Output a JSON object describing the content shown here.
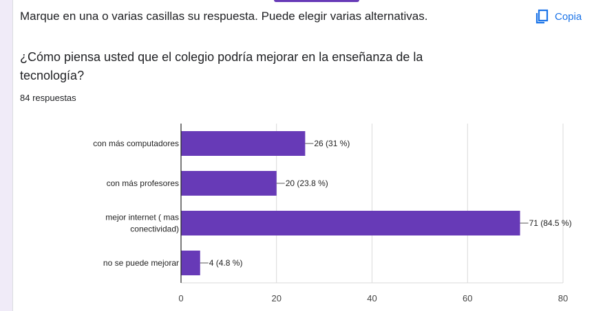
{
  "instruction": "Marque en una o varias casillas su respuesta. Puede elegir varias alternativas.",
  "copy_label": "Copiar",
  "question": "¿Cómo piensa usted que el colegio podría mejorar en la enseñanza de la tecnología?",
  "responses": "84 respuestas",
  "colors": {
    "bar": "#673ab7",
    "accent": "#1a73e8"
  },
  "icons": {
    "copy": "copy-icon"
  },
  "chart_data": {
    "type": "bar",
    "orientation": "horizontal",
    "categories": [
      "con más computadores",
      "con más profesores",
      "mejor internet ( mas conectividad)",
      "no se puede mejorar"
    ],
    "category_lines": [
      [
        "con más computadores"
      ],
      [
        "con más profesores"
      ],
      [
        "mejor internet ( mas",
        "conectividad)"
      ],
      [
        "no se puede mejorar"
      ]
    ],
    "values": [
      26,
      20,
      71,
      4
    ],
    "value_labels": [
      "26 (31 %)",
      "20 (23.8 %)",
      "71 (84.5 %)",
      "4 (4.8 %)"
    ],
    "xlim": [
      0,
      80
    ],
    "xticks": [
      0,
      20,
      40,
      60,
      80
    ],
    "grid": true,
    "title": "",
    "xlabel": "",
    "ylabel": ""
  }
}
